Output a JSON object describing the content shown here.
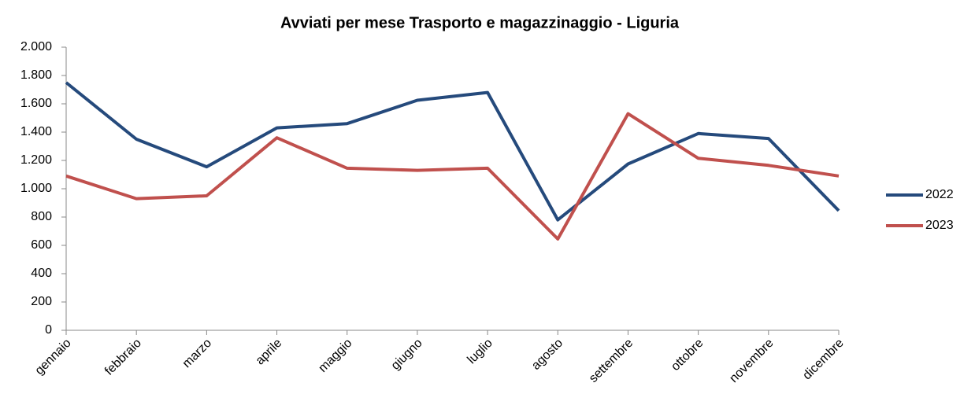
{
  "chart_data": {
    "type": "line",
    "title": "Avviati per mese Trasporto e magazzinaggio - Liguria",
    "categories": [
      "gennaio",
      "febbraio",
      "marzo",
      "aprile",
      "maggio",
      "giugno",
      "luglio",
      "agosto",
      "settembre",
      "ottobre",
      "novembre",
      "dicembre"
    ],
    "series": [
      {
        "name": "2022",
        "color": "#254a7c",
        "values": [
          1750,
          1350,
          1155,
          1430,
          1460,
          1625,
          1680,
          780,
          1175,
          1390,
          1355,
          845
        ]
      },
      {
        "name": "2023",
        "color": "#c0504d",
        "values": [
          1090,
          930,
          950,
          1360,
          1145,
          1130,
          1145,
          645,
          1530,
          1215,
          1165,
          1090
        ]
      }
    ],
    "ylim": [
      0,
      2000
    ],
    "yticks": [
      0,
      200,
      400,
      600,
      800,
      {
        "value": 1000,
        "label": "1.000"
      },
      {
        "value": 1200,
        "label": "1.200"
      },
      {
        "value": 1400,
        "label": "1.400"
      },
      {
        "value": 1600,
        "label": "1.600"
      },
      {
        "value": 1800,
        "label": "1.800"
      },
      {
        "value": 2000,
        "label": "2.000"
      }
    ],
    "grid": false,
    "legend": "right"
  }
}
